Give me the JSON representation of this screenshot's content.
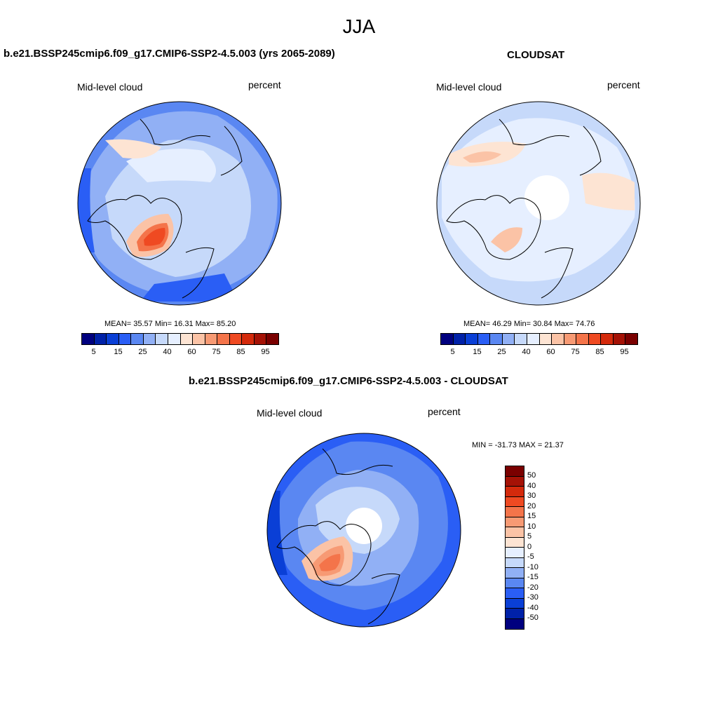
{
  "title": "JJA",
  "panels": {
    "left": {
      "title": "b.e21.BSSP245cmip6.f09_g17.CMIP6-SSP2-4.5.003 (yrs 2065-2089)",
      "variable": "Mid-level cloud",
      "units": "percent",
      "stats": "MEAN=  35.57  Min=  16.31  Max=  85.20"
    },
    "right": {
      "title": "CLOUDSAT",
      "variable": "Mid-level cloud",
      "units": "percent",
      "stats": "MEAN=  46.29  Min=  30.84  Max=  74.76"
    },
    "diff": {
      "title": "b.e21.BSSP245cmip6.f09_g17.CMIP6-SSP2-4.5.003 - CLOUDSAT",
      "variable": "Mid-level cloud",
      "units": "percent",
      "stats": "MIN = -31.73 MAX =  21.37"
    }
  },
  "colorbar_main": {
    "colors": [
      "#00007f",
      "#0021a8",
      "#0a3fd6",
      "#2a5ef5",
      "#5a87f2",
      "#91b0f5",
      "#c6d9fa",
      "#e6efff",
      "#fde4d3",
      "#fbc3a6",
      "#f79a74",
      "#f4744a",
      "#ef4a22",
      "#d42a0c",
      "#a51206",
      "#7a0000"
    ],
    "tick_labels": [
      "5",
      "15",
      "25",
      "40",
      "60",
      "75",
      "85",
      "95"
    ]
  },
  "colorbar_diff": {
    "colors": [
      "#7a0000",
      "#a51206",
      "#d42a0c",
      "#ef4a22",
      "#f4744a",
      "#f79a74",
      "#fbc3a6",
      "#fde4d3",
      "#e6efff",
      "#c6d9fa",
      "#91b0f5",
      "#5a87f2",
      "#2a5ef5",
      "#0a3fd6",
      "#0021a8",
      "#00007f"
    ],
    "tick_labels": [
      "50",
      "40",
      "30",
      "20",
      "15",
      "10",
      "5",
      "0",
      "-5",
      "-10",
      "-15",
      "-20",
      "-30",
      "-40",
      "-50"
    ]
  }
}
